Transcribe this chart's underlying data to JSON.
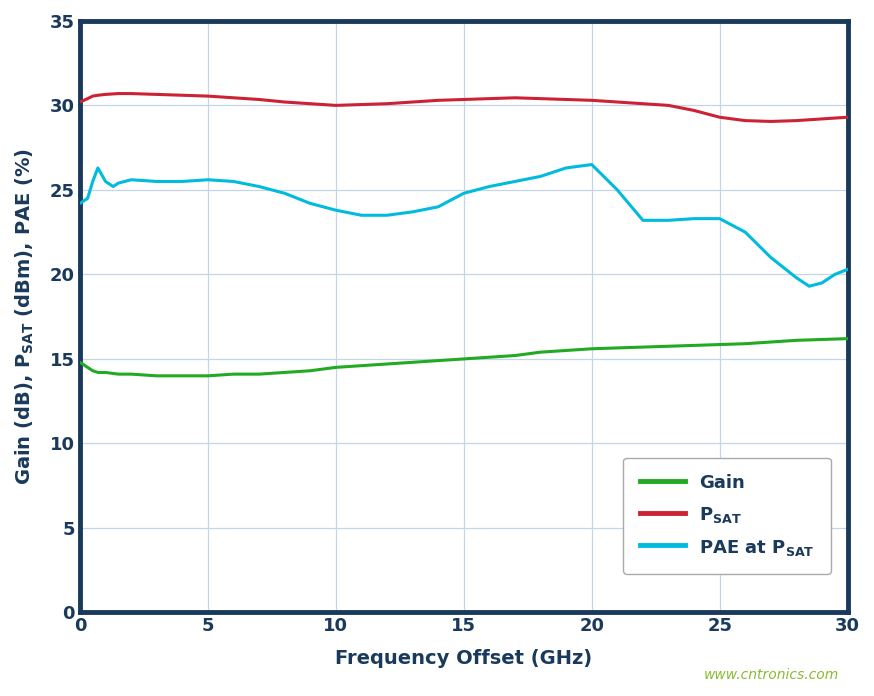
{
  "xlabel": "Frequency Offset (GHz)",
  "xlim": [
    0,
    30
  ],
  "ylim": [
    0,
    35
  ],
  "xticks": [
    0,
    5,
    10,
    15,
    20,
    25,
    30
  ],
  "yticks": [
    0,
    5,
    10,
    15,
    20,
    25,
    30,
    35
  ],
  "background_color": "#ffffff",
  "grid_color": "#c5d5e8",
  "spine_color": "#1a3a5c",
  "spine_linewidth": 3.5,
  "tick_label_color": "#1a3a5c",
  "tick_label_fontsize": 13,
  "axis_label_color": "#1a3a5c",
  "axis_label_fontsize": 14,
  "line_gain_color": "#22aa22",
  "line_psat_color": "#cc2233",
  "line_pae_color": "#00bbdd",
  "line_width": 2.2,
  "legend_text_color": "#1a3a5c",
  "legend_fontsize": 13,
  "watermark_color": "#88bb33",
  "watermark": "www.cntronics.com",
  "watermark_fontsize": 10,
  "gain_x": [
    0.0,
    0.3,
    0.5,
    0.7,
    1.0,
    1.5,
    2.0,
    3.0,
    4.0,
    5.0,
    6.0,
    7.0,
    8.0,
    9.0,
    10.0,
    11.0,
    12.0,
    13.0,
    14.0,
    15.0,
    16.0,
    17.0,
    18.0,
    19.0,
    20.0,
    21.0,
    22.0,
    23.0,
    24.0,
    25.0,
    26.0,
    27.0,
    28.0,
    29.0,
    30.0
  ],
  "gain_y": [
    14.8,
    14.5,
    14.3,
    14.2,
    14.2,
    14.1,
    14.1,
    14.0,
    14.0,
    14.0,
    14.1,
    14.1,
    14.2,
    14.3,
    14.5,
    14.6,
    14.7,
    14.8,
    14.9,
    15.0,
    15.1,
    15.2,
    15.4,
    15.5,
    15.6,
    15.65,
    15.7,
    15.75,
    15.8,
    15.85,
    15.9,
    16.0,
    16.1,
    16.15,
    16.2
  ],
  "psat_x": [
    0.0,
    0.3,
    0.5,
    0.7,
    1.0,
    1.5,
    2.0,
    3.0,
    4.0,
    5.0,
    6.0,
    7.0,
    8.0,
    9.0,
    10.0,
    11.0,
    12.0,
    13.0,
    14.0,
    15.0,
    16.0,
    17.0,
    18.0,
    19.0,
    20.0,
    21.0,
    22.0,
    23.0,
    24.0,
    25.0,
    26.0,
    27.0,
    28.0,
    29.0,
    30.0
  ],
  "psat_y": [
    30.2,
    30.4,
    30.55,
    30.6,
    30.65,
    30.7,
    30.7,
    30.65,
    30.6,
    30.55,
    30.45,
    30.35,
    30.2,
    30.1,
    30.0,
    30.05,
    30.1,
    30.2,
    30.3,
    30.35,
    30.4,
    30.45,
    30.4,
    30.35,
    30.3,
    30.2,
    30.1,
    30.0,
    29.7,
    29.3,
    29.1,
    29.05,
    29.1,
    29.2,
    29.3
  ],
  "pae_x": [
    0.0,
    0.3,
    0.5,
    0.7,
    1.0,
    1.3,
    1.5,
    2.0,
    3.0,
    4.0,
    5.0,
    6.0,
    7.0,
    8.0,
    9.0,
    10.0,
    11.0,
    12.0,
    13.0,
    14.0,
    15.0,
    16.0,
    17.0,
    18.0,
    19.0,
    20.0,
    21.0,
    22.0,
    23.0,
    24.0,
    25.0,
    26.0,
    27.0,
    28.0,
    28.5,
    29.0,
    29.5,
    30.0
  ],
  "pae_y": [
    24.2,
    24.5,
    25.5,
    26.3,
    25.5,
    25.2,
    25.4,
    25.6,
    25.5,
    25.5,
    25.6,
    25.5,
    25.2,
    24.8,
    24.2,
    23.8,
    23.5,
    23.5,
    23.7,
    24.0,
    24.8,
    25.2,
    25.5,
    25.8,
    26.3,
    26.5,
    25.0,
    23.2,
    23.2,
    23.3,
    23.3,
    22.5,
    21.0,
    19.8,
    19.3,
    19.5,
    20.0,
    20.3
  ]
}
